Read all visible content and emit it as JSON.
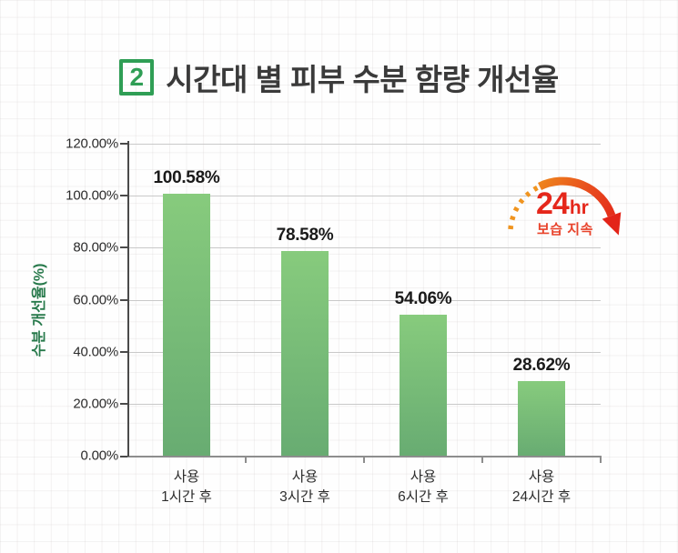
{
  "header": {
    "section_number": "2",
    "title": "시간대 별 피부 수분 함량 개선율"
  },
  "chart_data": {
    "type": "bar",
    "title": "시간대 별 피부 수분 함량 개선율",
    "ylabel": "수분 개선율(%)",
    "xlabel": "",
    "ylim": [
      0,
      120
    ],
    "grid": true,
    "legend": "none",
    "ytick_labels": [
      "120.00%",
      "100.00%",
      "80.00%",
      "60.00%",
      "40.00%",
      "20.00%",
      "0.00%"
    ],
    "categories": [
      {
        "line1": "사용",
        "line2": "1시간 후"
      },
      {
        "line1": "사용",
        "line2": "3시간 후"
      },
      {
        "line1": "사용",
        "line2": "6시간 후"
      },
      {
        "line1": "사용",
        "line2": "24시간 후"
      }
    ],
    "values": [
      100.58,
      78.58,
      54.06,
      28.62
    ],
    "value_labels": [
      "100.58%",
      "78.58%",
      "54.06%",
      "28.62%"
    ],
    "bar_gradient_top": "#87cb7d",
    "bar_gradient_bottom": "#68ac72"
  },
  "annotation_24hr": {
    "number": "24",
    "unit": "hr",
    "caption": "보습 지속",
    "text_color": "#e5271b",
    "arc_start_color": "#f0941f",
    "arc_end_color": "#e32419"
  },
  "colors": {
    "accent_green": "#2f9e55",
    "axis_title_green": "#27794b",
    "title_text": "#3a3a3a",
    "gridline": "#c9c9c9"
  }
}
